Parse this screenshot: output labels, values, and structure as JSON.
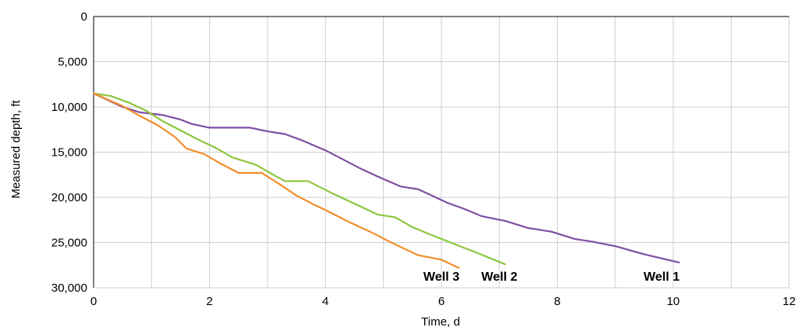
{
  "chart_data": {
    "type": "line",
    "title": "",
    "xlabel": "Time, d",
    "ylabel": "Measured depth, ft",
    "xlim": [
      0,
      12
    ],
    "ylim": [
      0,
      30000
    ],
    "y_inverted": true,
    "grid": true,
    "x_ticks": [
      0,
      2,
      4,
      6,
      8,
      10,
      12
    ],
    "x_tick_labels": [
      "0",
      "2",
      "4",
      "6",
      "8",
      "10",
      "12"
    ],
    "x_grid_step": 1,
    "y_ticks": [
      0,
      5000,
      10000,
      15000,
      20000,
      25000,
      30000
    ],
    "y_tick_labels": [
      "0",
      "5,000",
      "10,000",
      "15,000",
      "20,000",
      "25,000",
      "30,000"
    ],
    "series": [
      {
        "name": "Well 1",
        "color": "#7F4FA3",
        "points": [
          [
            0,
            8500
          ],
          [
            0.5,
            10000
          ],
          [
            0.8,
            10600
          ],
          [
            1.2,
            10900
          ],
          [
            1.5,
            11400
          ],
          [
            1.7,
            11900
          ],
          [
            2.0,
            12300
          ],
          [
            2.7,
            12300
          ],
          [
            3.0,
            12700
          ],
          [
            3.3,
            13000
          ],
          [
            3.6,
            13700
          ],
          [
            4.0,
            14800
          ],
          [
            4.3,
            15800
          ],
          [
            4.6,
            16800
          ],
          [
            4.9,
            17700
          ],
          [
            5.3,
            18800
          ],
          [
            5.6,
            19100
          ],
          [
            5.8,
            19700
          ],
          [
            6.1,
            20600
          ],
          [
            6.4,
            21300
          ],
          [
            6.7,
            22100
          ],
          [
            7.1,
            22600
          ],
          [
            7.5,
            23400
          ],
          [
            7.9,
            23800
          ],
          [
            8.3,
            24600
          ],
          [
            8.6,
            24900
          ],
          [
            9.0,
            25400
          ],
          [
            9.5,
            26300
          ],
          [
            10.1,
            27200
          ]
        ]
      },
      {
        "name": "Well 2",
        "color": "#8DC63F",
        "points": [
          [
            0,
            8500
          ],
          [
            0.3,
            8800
          ],
          [
            0.6,
            9500
          ],
          [
            0.9,
            10400
          ],
          [
            1.2,
            11600
          ],
          [
            1.5,
            12600
          ],
          [
            1.8,
            13600
          ],
          [
            2.1,
            14500
          ],
          [
            2.4,
            15600
          ],
          [
            2.8,
            16400
          ],
          [
            3.1,
            17500
          ],
          [
            3.3,
            18200
          ],
          [
            3.7,
            18200
          ],
          [
            4.1,
            19500
          ],
          [
            4.5,
            20700
          ],
          [
            4.9,
            21900
          ],
          [
            5.2,
            22200
          ],
          [
            5.5,
            23300
          ],
          [
            5.8,
            24100
          ],
          [
            6.2,
            25100
          ],
          [
            6.6,
            26100
          ],
          [
            7.1,
            27400
          ]
        ]
      },
      {
        "name": "Well 3",
        "color": "#F28E2B",
        "points": [
          [
            0,
            8500
          ],
          [
            0.5,
            9900
          ],
          [
            0.8,
            11000
          ],
          [
            1.1,
            12000
          ],
          [
            1.4,
            13300
          ],
          [
            1.6,
            14600
          ],
          [
            1.9,
            15200
          ],
          [
            2.2,
            16300
          ],
          [
            2.5,
            17300
          ],
          [
            2.9,
            17300
          ],
          [
            3.2,
            18500
          ],
          [
            3.5,
            19800
          ],
          [
            3.8,
            20800
          ],
          [
            4.0,
            21400
          ],
          [
            4.4,
            22700
          ],
          [
            4.8,
            23900
          ],
          [
            5.2,
            25200
          ],
          [
            5.6,
            26400
          ],
          [
            6.0,
            26900
          ],
          [
            6.3,
            27800
          ]
        ]
      }
    ],
    "annotations": [
      {
        "text": "Well 1",
        "x": 9.8,
        "y": 29200
      },
      {
        "text": "Well 2",
        "x": 7.0,
        "y": 29200
      },
      {
        "text": "Well 3",
        "x": 6.0,
        "y": 29200
      }
    ]
  }
}
